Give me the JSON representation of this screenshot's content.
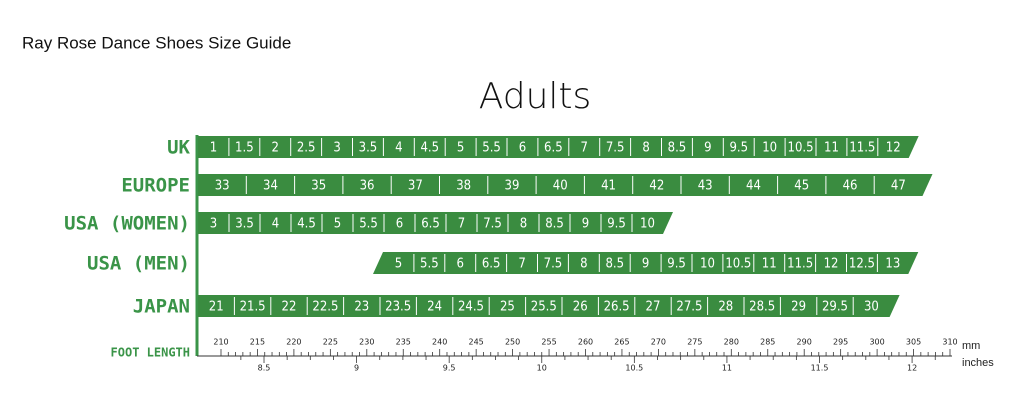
{
  "header": {
    "title": "Ray Rose Dance Shoes Size Guide",
    "section": "Adults"
  },
  "rows": [
    {
      "label": "UK",
      "sizes": [
        "1",
        "1.5",
        "2",
        "2.5",
        "3",
        "3.5",
        "4",
        "4.5",
        "5",
        "5.5",
        "6",
        "6.5",
        "7",
        "7.5",
        "8",
        "8.5",
        "9",
        "9.5",
        "10",
        "10.5",
        "11",
        "11.5",
        "12"
      ]
    },
    {
      "label": "EUROPE",
      "sizes": [
        "33",
        "34",
        "35",
        "36",
        "37",
        "38",
        "39",
        "40",
        "41",
        "42",
        "43",
        "44",
        "45",
        "46",
        "47"
      ]
    },
    {
      "label": "USA (WOMEN)",
      "sizes": [
        "3",
        "3.5",
        "4",
        "4.5",
        "5",
        "5.5",
        "6",
        "6.5",
        "7",
        "7.5",
        "8",
        "8.5",
        "9",
        "9.5",
        "10"
      ]
    },
    {
      "label": "USA (MEN)",
      "sizes": [
        "5",
        "5.5",
        "6",
        "6.5",
        "7",
        "7.5",
        "8",
        "8.5",
        "9",
        "9.5",
        "10",
        "10.5",
        "11",
        "11.5",
        "12",
        "12.5",
        "13"
      ]
    },
    {
      "label": "JAPAN",
      "sizes": [
        "21",
        "21.5",
        "22",
        "22.5",
        "23",
        "23.5",
        "24",
        "24.5",
        "25",
        "25.5",
        "26",
        "26.5",
        "27",
        "27.5",
        "28",
        "28.5",
        "29",
        "29.5",
        "30"
      ]
    }
  ],
  "foot_length": {
    "label": "FOOT LENGTH",
    "mm_unit": "mm",
    "mm": [
      210,
      215,
      220,
      225,
      230,
      235,
      240,
      245,
      250,
      255,
      260,
      265,
      270,
      275,
      280,
      285,
      290,
      295,
      300,
      305,
      310
    ],
    "inch_unit": "inches",
    "inches": [
      8.5,
      9,
      9.5,
      10,
      10.5,
      11,
      11.5,
      12
    ]
  }
}
